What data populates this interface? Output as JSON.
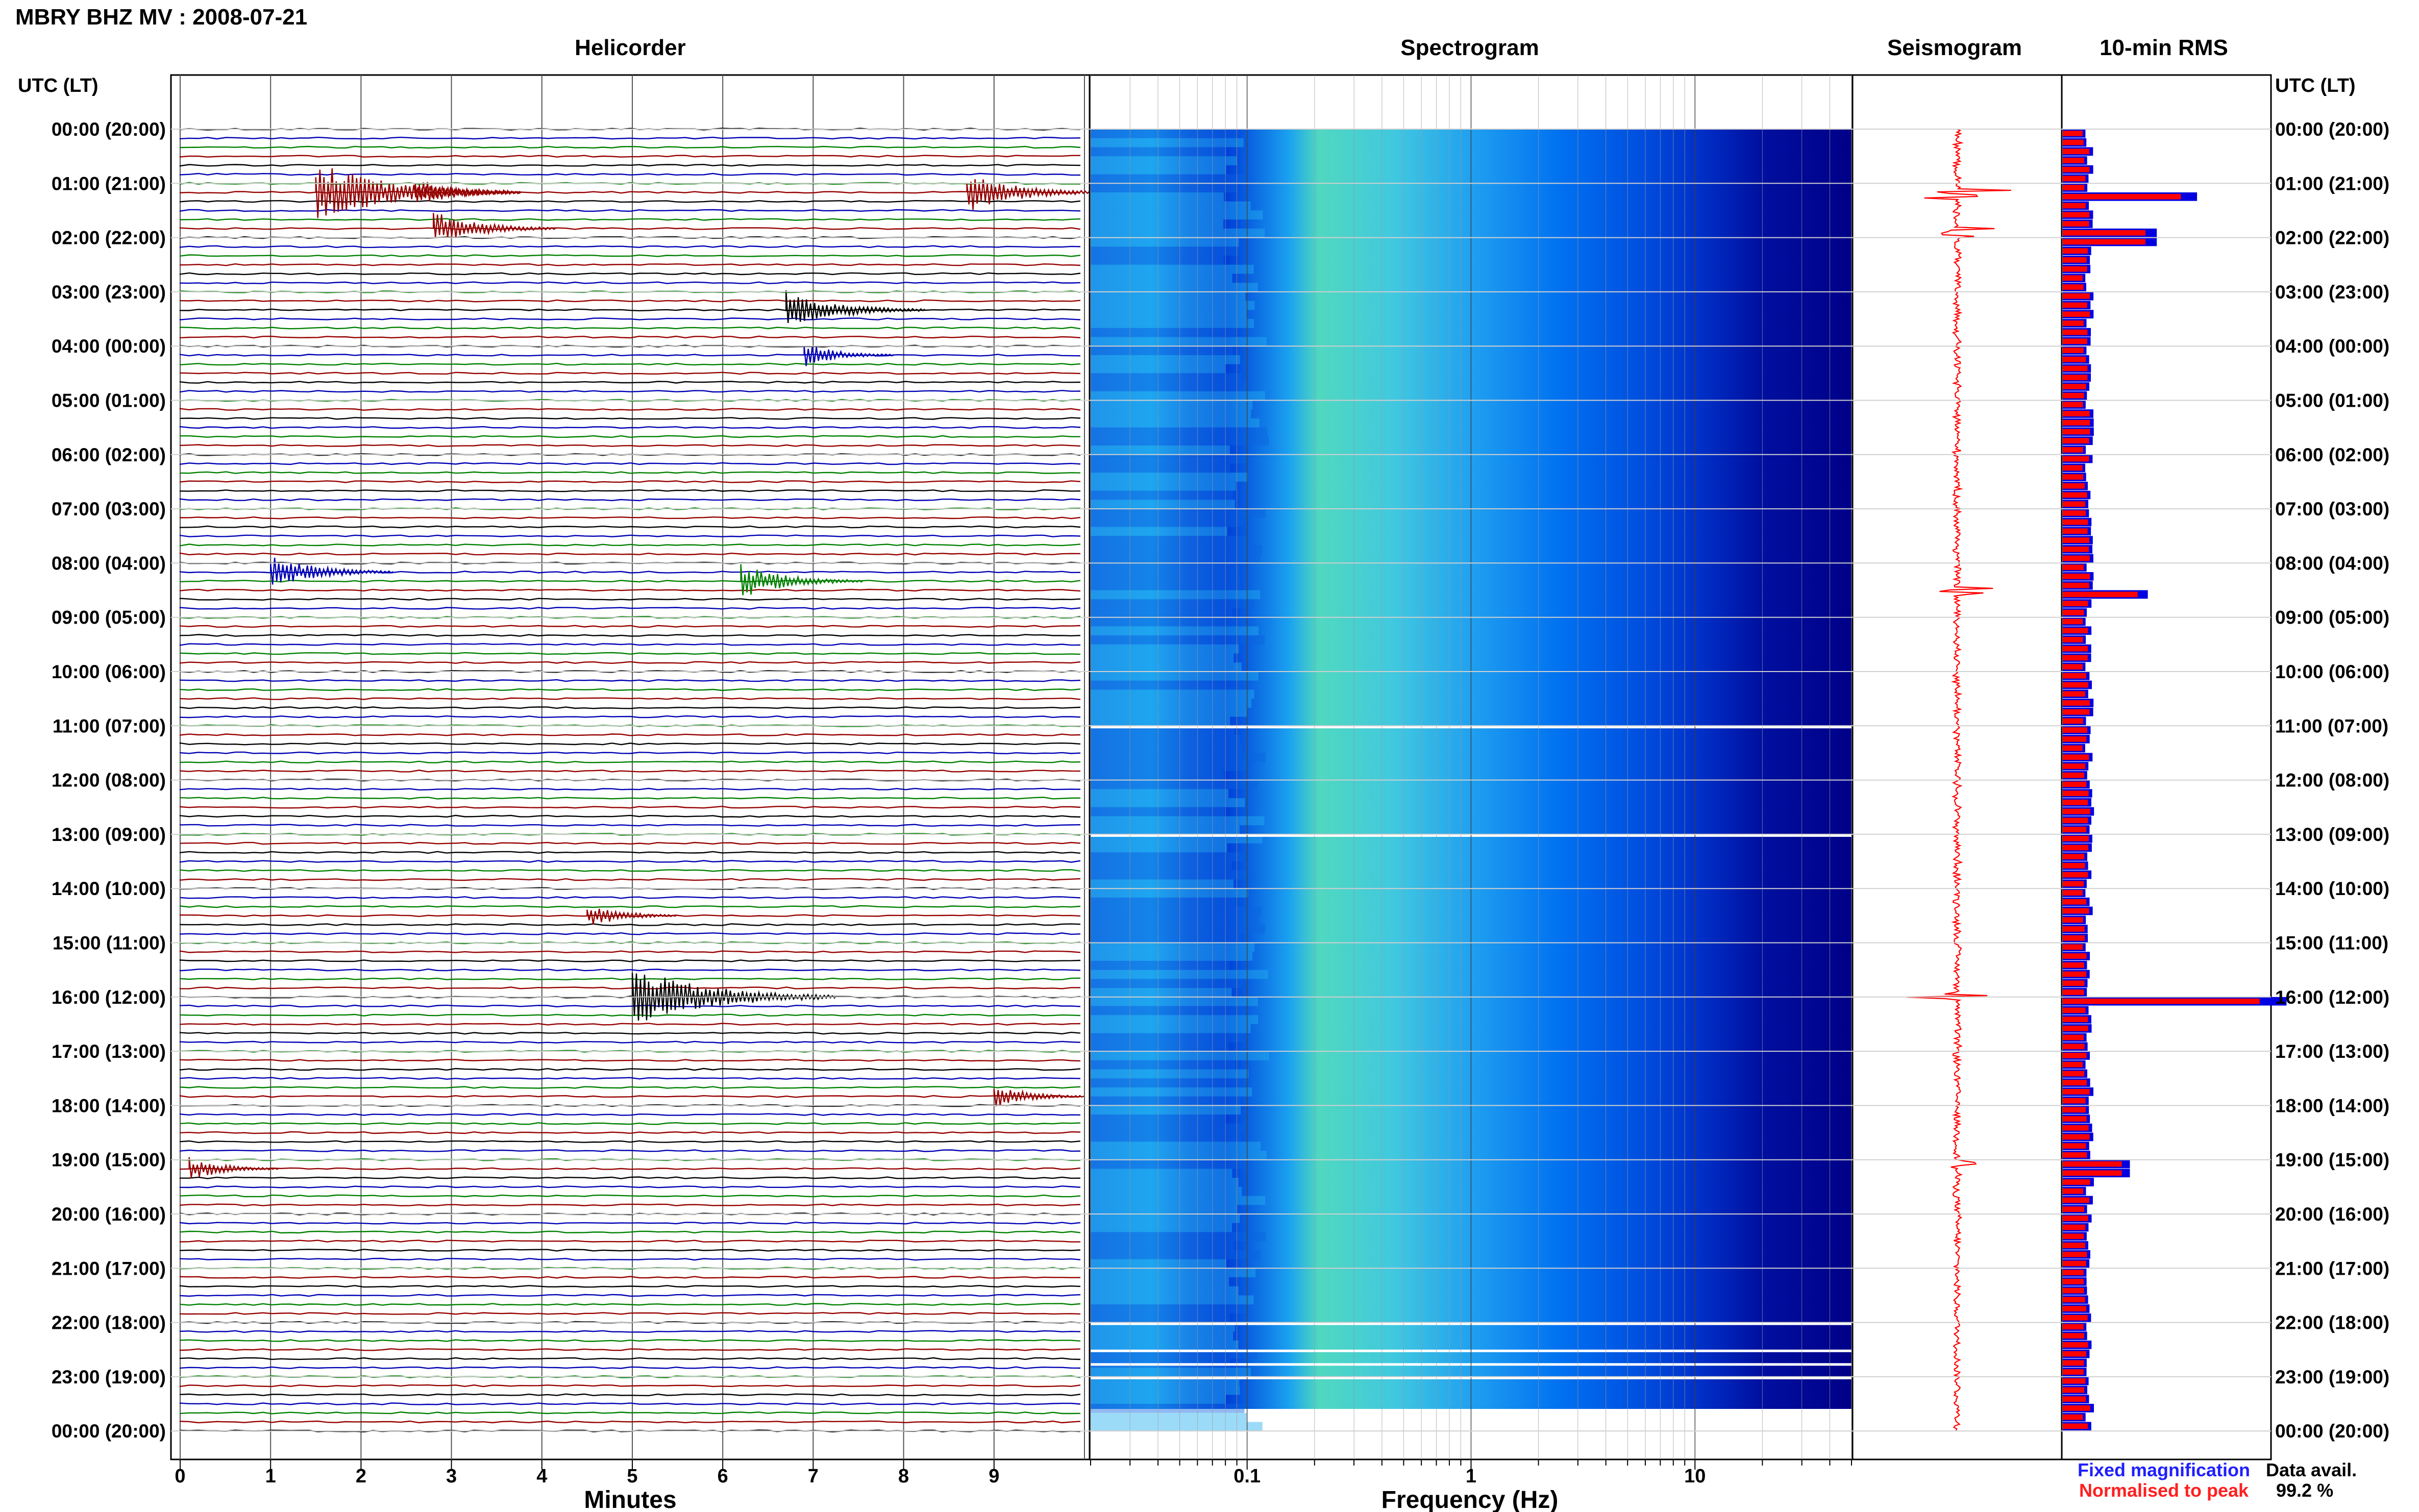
{
  "header": {
    "station_title": "MBRY BHZ MV : 2008-07-21"
  },
  "panels": {
    "helicorder_title": "Helicorder",
    "spectrogram_title": "Spectrogram",
    "seismogram_title": "Seismogram",
    "rms_title": "10-min RMS"
  },
  "axes": {
    "left_header": "UTC (LT)",
    "right_header": "UTC (LT)",
    "minutes_label": "Minutes",
    "frequency_label": "Frequency (Hz)",
    "minute_ticks": [
      "0",
      "1",
      "2",
      "3",
      "4",
      "5",
      "6",
      "7",
      "8",
      "9"
    ],
    "frequency_ticks": [
      "0.1",
      "1",
      "10"
    ]
  },
  "time_labels": [
    "00:00 (20:00)",
    "01:00 (21:00)",
    "02:00 (22:00)",
    "03:00 (23:00)",
    "04:00 (00:00)",
    "05:00 (01:00)",
    "06:00 (02:00)",
    "07:00 (03:00)",
    "08:00 (04:00)",
    "09:00 (05:00)",
    "10:00 (06:00)",
    "11:00 (07:00)",
    "12:00 (08:00)",
    "13:00 (09:00)",
    "14:00 (10:00)",
    "15:00 (11:00)",
    "16:00 (12:00)",
    "17:00 (13:00)",
    "18:00 (14:00)",
    "19:00 (15:00)",
    "20:00 (16:00)",
    "21:00 (17:00)",
    "22:00 (18:00)",
    "23:00 (19:00)",
    "00:00 (20:00)"
  ],
  "legend": {
    "fixed_magnification": "Fixed magnification",
    "normalised_to_peak": "Normalised to peak",
    "fixed_color": "#1f1fff",
    "normalised_color": "#ff1f1f"
  },
  "data_availability": {
    "label": "Data avail.",
    "value": "99.2 %"
  },
  "colors": {
    "trace_cycle": [
      "#000000",
      "#0000b4",
      "#008000",
      "#960000"
    ],
    "rms_blue": "#0000e0",
    "rms_red": "#ff0000",
    "seismogram_red": "#ff0000",
    "spectrogram_cmap": [
      "#000080",
      "#0000d0",
      "#0050ff",
      "#00a0ff",
      "#40e0d0",
      "#a0ff60"
    ]
  },
  "chart_data": {
    "type": "heatmap",
    "helicorder": {
      "rows_per_hour": 6,
      "minutes_range": [
        0,
        10
      ],
      "events": [
        {
          "hour": 1.1,
          "minute": 1.5,
          "amplitude": 1.0
        },
        {
          "hour": 1.1,
          "minute": 2.6,
          "amplitude": 0.4
        },
        {
          "hour": 1.1,
          "minute": 8.7,
          "amplitude": 0.6
        },
        {
          "hour": 1.8,
          "minute": 2.8,
          "amplitude": 0.5
        },
        {
          "hour": 3.3,
          "minute": 6.7,
          "amplitude": 0.6
        },
        {
          "hour": 4.2,
          "minute": 6.9,
          "amplitude": 0.3
        },
        {
          "hour": 8.1,
          "minute": 1.0,
          "amplitude": 0.5
        },
        {
          "hour": 8.4,
          "minute": 6.2,
          "amplitude": 0.5
        },
        {
          "hour": 14.5,
          "minute": 4.5,
          "amplitude": 0.3
        },
        {
          "hour": 16.0,
          "minute": 5.0,
          "amplitude": 1.0
        },
        {
          "hour": 17.9,
          "minute": 9.0,
          "amplitude": 0.3
        },
        {
          "hour": 19.1,
          "minute": 0.1,
          "amplitude": 0.3
        }
      ]
    },
    "spectrogram": {
      "frequency_range_hz": [
        0.02,
        50
      ],
      "frequency_scale": "log"
    },
    "rms_10min": {
      "units": "relative",
      "hourly_peaks": [
        {
          "hour": 1.2,
          "value": 0.6
        },
        {
          "hour": 1.9,
          "value": 0.42
        },
        {
          "hour": 8.5,
          "value": 0.38
        },
        {
          "hour": 16.0,
          "value": 1.0
        },
        {
          "hour": 19.1,
          "value": 0.3
        }
      ]
    }
  }
}
